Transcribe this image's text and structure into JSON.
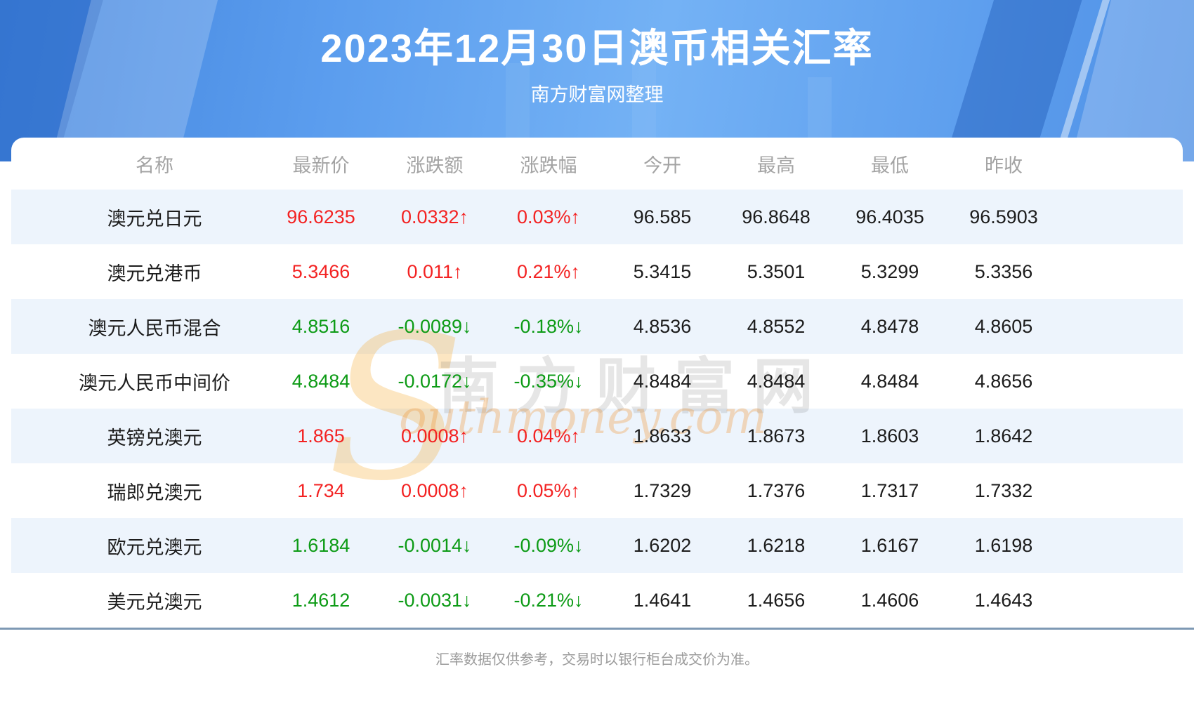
{
  "banner": {
    "title": "2023年12月30日澳币相关汇率",
    "subtitle": "南方财富网整理"
  },
  "table": {
    "headers": [
      "名称",
      "最新价",
      "涨跌额",
      "涨跌幅",
      "今开",
      "最高",
      "最低",
      "昨收"
    ],
    "rows": [
      {
        "name": "澳元兑日元",
        "latest": "96.6235",
        "change": "0.0332↑",
        "pct": "0.03%↑",
        "trend": "up",
        "open": "96.585",
        "high": "96.8648",
        "low": "96.4035",
        "prev": "96.5903"
      },
      {
        "name": "澳元兑港币",
        "latest": "5.3466",
        "change": "0.011↑",
        "pct": "0.21%↑",
        "trend": "up",
        "open": "5.3415",
        "high": "5.3501",
        "low": "5.3299",
        "prev": "5.3356"
      },
      {
        "name": "澳元人民币混合",
        "latest": "4.8516",
        "change": "-0.0089↓",
        "pct": "-0.18%↓",
        "trend": "down",
        "open": "4.8536",
        "high": "4.8552",
        "low": "4.8478",
        "prev": "4.8605"
      },
      {
        "name": "澳元人民币中间价",
        "latest": "4.8484",
        "change": "-0.0172↓",
        "pct": "-0.35%↓",
        "trend": "down",
        "open": "4.8484",
        "high": "4.8484",
        "low": "4.8484",
        "prev": "4.8656"
      },
      {
        "name": "英镑兑澳元",
        "latest": "1.865",
        "change": "0.0008↑",
        "pct": "0.04%↑",
        "trend": "up",
        "open": "1.8633",
        "high": "1.8673",
        "low": "1.8603",
        "prev": "1.8642"
      },
      {
        "name": "瑞郎兑澳元",
        "latest": "1.734",
        "change": "0.0008↑",
        "pct": "0.05%↑",
        "trend": "up",
        "open": "1.7329",
        "high": "1.7376",
        "low": "1.7317",
        "prev": "1.7332"
      },
      {
        "name": "欧元兑澳元",
        "latest": "1.6184",
        "change": "-0.0014↓",
        "pct": "-0.09%↓",
        "trend": "down",
        "open": "1.6202",
        "high": "1.6218",
        "low": "1.6167",
        "prev": "1.6198"
      },
      {
        "name": "美元兑澳元",
        "latest": "1.4612",
        "change": "-0.0031↓",
        "pct": "-0.21%↓",
        "trend": "down",
        "open": "1.4641",
        "high": "1.4656",
        "low": "1.4606",
        "prev": "1.4643"
      }
    ]
  },
  "watermark": {
    "initial": "S",
    "cn": "南方财富网",
    "en": "outhmoney.com"
  },
  "footer": {
    "disclaimer": "汇率数据仅供参考，交易时以银行柜台成交价为准。"
  },
  "colors": {
    "up": "#f32222",
    "down": "#0d9b16",
    "stripe": "#edf4fc",
    "banner_blue": "#5b9dee",
    "divider": "#7e99b4"
  },
  "chart_data": {
    "type": "table",
    "title": "2023年12月30日澳币相关汇率",
    "subtitle": "南方财富网整理",
    "columns": [
      "名称",
      "最新价",
      "涨跌额",
      "涨跌幅",
      "今开",
      "最高",
      "最低",
      "昨收"
    ],
    "rows": [
      [
        "澳元兑日元",
        96.6235,
        0.0332,
        "0.03%",
        96.585,
        96.8648,
        96.4035,
        96.5903
      ],
      [
        "澳元兑港币",
        5.3466,
        0.011,
        "0.21%",
        5.3415,
        5.3501,
        5.3299,
        5.3356
      ],
      [
        "澳元人民币混合",
        4.8516,
        -0.0089,
        "-0.18%",
        4.8536,
        4.8552,
        4.8478,
        4.8605
      ],
      [
        "澳元人民币中间价",
        4.8484,
        -0.0172,
        "-0.35%",
        4.8484,
        4.8484,
        4.8484,
        4.8656
      ],
      [
        "英镑兑澳元",
        1.865,
        0.0008,
        "0.04%",
        1.8633,
        1.8673,
        1.8603,
        1.8642
      ],
      [
        "瑞郎兑澳元",
        1.734,
        0.0008,
        "0.05%",
        1.7329,
        1.7376,
        1.7317,
        1.7332
      ],
      [
        "欧元兑澳元",
        1.6184,
        -0.0014,
        "-0.09%",
        1.6202,
        1.6218,
        1.6167,
        1.6198
      ],
      [
        "美元兑澳元",
        1.4612,
        -0.0031,
        "-0.21%",
        1.4641,
        1.4656,
        1.4606,
        1.4643
      ]
    ]
  }
}
